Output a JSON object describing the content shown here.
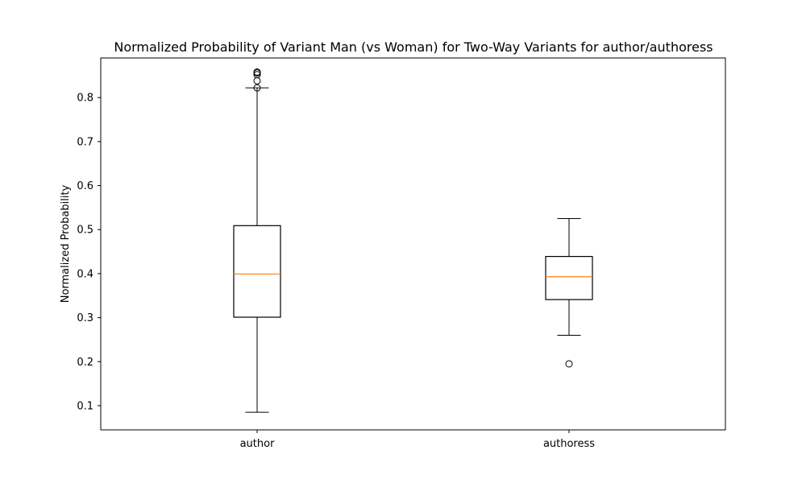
{
  "chart_data": {
    "type": "box",
    "title": "Normalized Probability of Variant Man (vs Woman) for Two-Way Variants for author/authoress",
    "xlabel": "",
    "ylabel": "Normalized Probability",
    "ylim": [
      0.045,
      0.89
    ],
    "yticks": [
      0.1,
      0.2,
      0.3,
      0.4,
      0.5,
      0.6,
      0.7,
      0.8
    ],
    "ytick_labels": [
      "0.1",
      "0.2",
      "0.3",
      "0.4",
      "0.5",
      "0.6",
      "0.7",
      "0.8"
    ],
    "grid": false,
    "median_color": "#ff7f0e",
    "box_color": "#000000",
    "categories": [
      "author",
      "authoress"
    ],
    "boxes": [
      {
        "label": "author",
        "whisker_low": 0.085,
        "q1": 0.301,
        "median": 0.399,
        "q3": 0.509,
        "whisker_high": 0.822,
        "outliers": [
          0.822,
          0.838,
          0.852,
          0.856,
          0.858
        ]
      },
      {
        "label": "authoress",
        "whisker_low": 0.26,
        "q1": 0.341,
        "median": 0.393,
        "q3": 0.439,
        "whisker_high": 0.525,
        "outliers": [
          0.195
        ]
      }
    ]
  }
}
